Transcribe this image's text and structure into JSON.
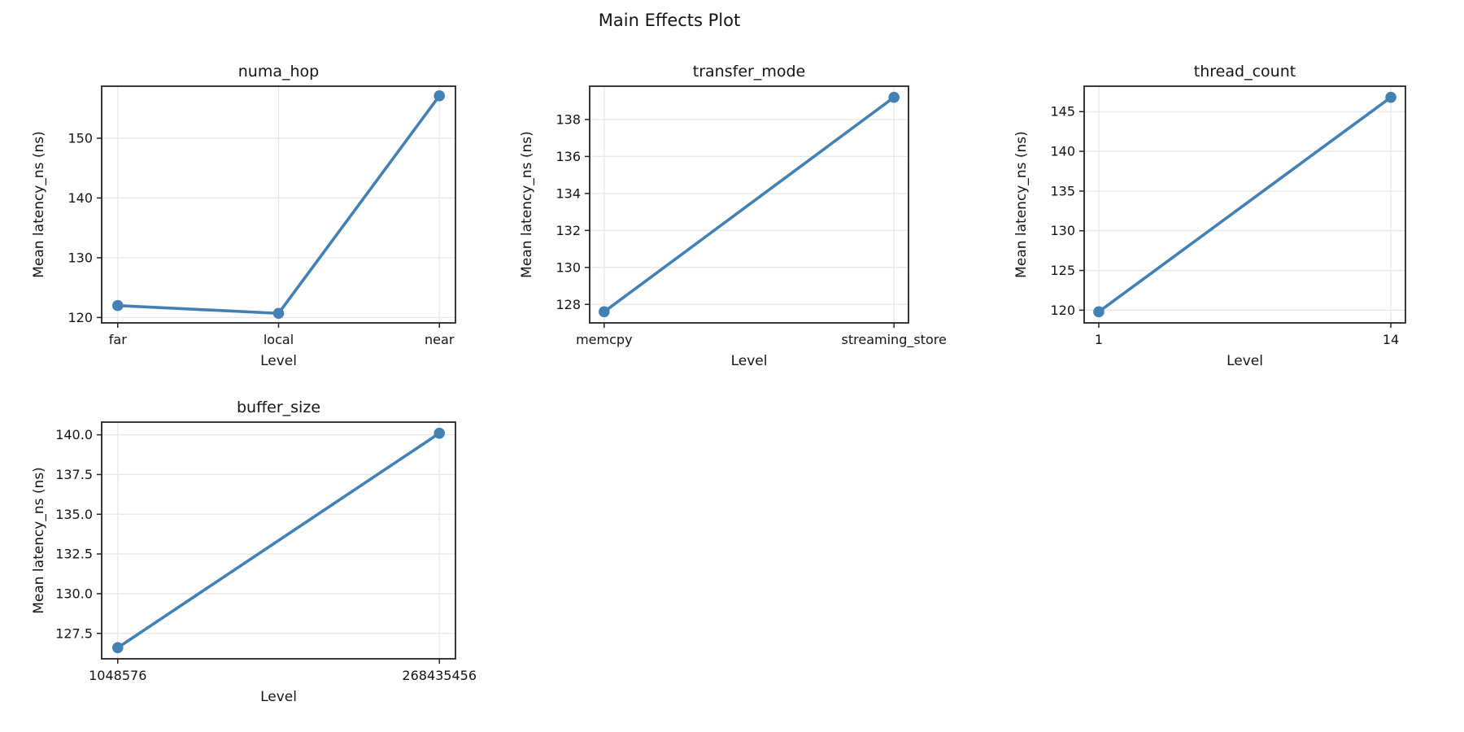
{
  "figure": {
    "title": "Main Effects Plot",
    "background": "#ffffff",
    "line_color": "#4381b5",
    "marker_color": "#4381b5",
    "grid_color": "#e7e7e7",
    "spine_color": "#232323",
    "text_color": "#151515"
  },
  "chart_data": [
    {
      "type": "line",
      "title": "numa_hop",
      "xlabel": "Level",
      "ylabel": "Mean latency_ns (ns)",
      "categories": [
        "far",
        "local",
        "near"
      ],
      "values": [
        122.0,
        120.7,
        157.1
      ],
      "ytick_labels": [
        "120",
        "130",
        "140",
        "150"
      ],
      "yticks": [
        120,
        130,
        140,
        150
      ],
      "ylim": [
        119.1,
        158.7
      ],
      "grid": true,
      "legend": "none"
    },
    {
      "type": "line",
      "title": "transfer_mode",
      "xlabel": "Level",
      "ylabel": "Mean latency_ns (ns)",
      "categories": [
        "memcpy",
        "streaming_store"
      ],
      "values": [
        127.6,
        139.2
      ],
      "ytick_labels": [
        "128",
        "130",
        "132",
        "134",
        "136",
        "138"
      ],
      "yticks": [
        128,
        130,
        132,
        134,
        136,
        138
      ],
      "ylim": [
        127.0,
        139.8
      ],
      "grid": true,
      "legend": "none"
    },
    {
      "type": "line",
      "title": "thread_count",
      "xlabel": "Level",
      "ylabel": "Mean latency_ns (ns)",
      "categories": [
        "1",
        "14"
      ],
      "values": [
        119.8,
        146.8
      ],
      "ytick_labels": [
        "120",
        "125",
        "130",
        "135",
        "140",
        "145"
      ],
      "yticks": [
        120,
        125,
        130,
        135,
        140,
        145
      ],
      "ylim": [
        118.4,
        148.2
      ],
      "grid": true,
      "legend": "none"
    },
    {
      "type": "line",
      "title": "buffer_size",
      "xlabel": "Level",
      "ylabel": "Mean latency_ns (ns)",
      "categories": [
        "1048576",
        "268435456"
      ],
      "values": [
        126.6,
        140.1
      ],
      "ytick_labels": [
        "127.5",
        "130.0",
        "132.5",
        "135.0",
        "137.5",
        "140.0"
      ],
      "yticks": [
        127.5,
        130.0,
        132.5,
        135.0,
        137.5,
        140.0
      ],
      "ylim": [
        125.9,
        140.8
      ],
      "grid": true,
      "legend": "none"
    }
  ]
}
